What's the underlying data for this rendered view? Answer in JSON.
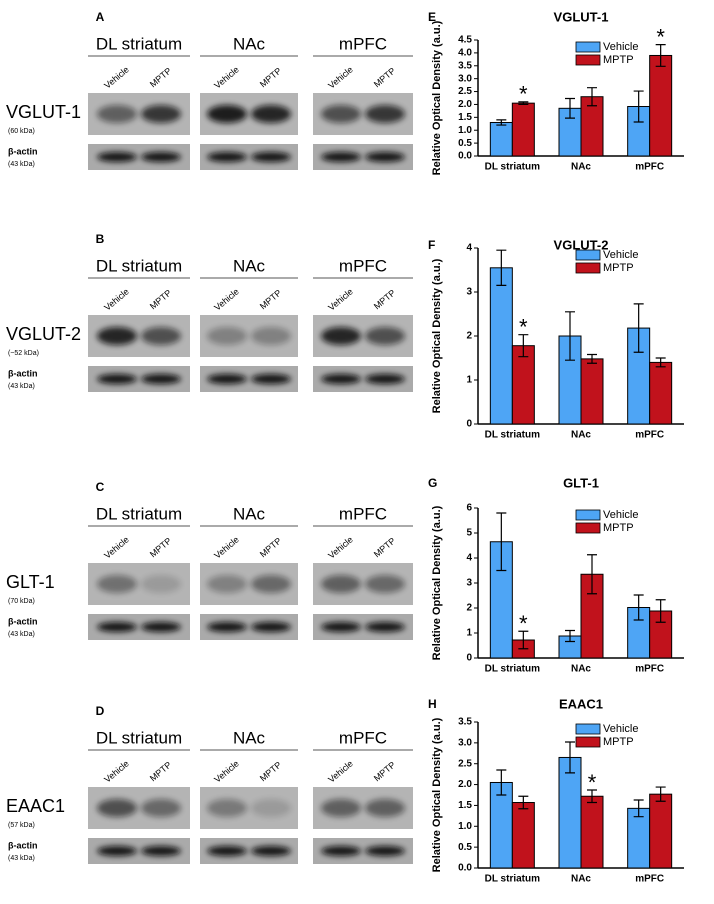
{
  "blot_panels": [
    {
      "label": "A",
      "groups": [
        "DL striatum",
        "NAc",
        "mPFC"
      ],
      "lanes": [
        "Vehicle",
        "MPTP"
      ],
      "protein": "VGLUT-1",
      "protein_kda": "(60 kDa)",
      "loading": "β-actin",
      "loading_kda": "(43 kDa)"
    },
    {
      "label": "B",
      "groups": [
        "DL striatum",
        "NAc",
        "mPFC"
      ],
      "lanes": [
        "Vehicle",
        "MPTP"
      ],
      "protein": "VGLUT-2",
      "protein_kda": "(~52 kDa)",
      "loading": "β-actin",
      "loading_kda": "(43 kDa)"
    },
    {
      "label": "C",
      "groups": [
        "DL striatum",
        "NAc",
        "mPFC"
      ],
      "lanes": [
        "Vehicle",
        "MPTP"
      ],
      "protein": "GLT-1",
      "protein_kda": "(70 kDa)",
      "loading": "β-actin",
      "loading_kda": "(43 kDa)"
    },
    {
      "label": "D",
      "groups": [
        "DL striatum",
        "NAc",
        "mPFC"
      ],
      "lanes": [
        "Vehicle",
        "MPTP"
      ],
      "protein": "EAAC1",
      "protein_kda": "(57 kDa)",
      "loading": "β-actin",
      "loading_kda": "(43 kDa)"
    }
  ],
  "chart_data": [
    {
      "type": "bar",
      "panel_label": "E",
      "title": "VGLUT-1",
      "ylabel": "Relative Optical Density (a.u.)",
      "categories": [
        "DL striatum",
        "NAc",
        "mPFC"
      ],
      "series": [
        {
          "name": "Vehicle",
          "color": "#4ea5f5",
          "values": [
            1.3,
            1.85,
            1.92
          ],
          "errors": [
            0.1,
            0.38,
            0.6
          ]
        },
        {
          "name": "MPTP",
          "color": "#c1121c",
          "values": [
            2.05,
            2.3,
            3.9
          ],
          "errors": [
            0.05,
            0.35,
            0.42
          ],
          "significance": [
            "*",
            null,
            "*"
          ]
        }
      ],
      "ylim": [
        0,
        4.5
      ],
      "yticks": [
        {
          "value": 0,
          "label": "0.0"
        },
        0.5,
        {
          "value": 1,
          "label": "1.0"
        },
        1.5,
        {
          "value": 2,
          "label": "2.0"
        },
        2.5,
        {
          "value": 3,
          "label": "3.0"
        },
        3.5,
        {
          "value": 4,
          "label": "4.0"
        },
        4.5
      ],
      "legend": "upper right"
    },
    {
      "type": "bar",
      "panel_label": "F",
      "title": "VGLUT-2",
      "ylabel": "Relative Optical Density (a.u.)",
      "categories": [
        "DL striatum",
        "NAc",
        "mPFC"
      ],
      "series": [
        {
          "name": "Vehicle",
          "color": "#4ea5f5",
          "values": [
            3.55,
            2.0,
            2.18
          ],
          "errors": [
            0.4,
            0.55,
            0.55
          ]
        },
        {
          "name": "MPTP",
          "color": "#c1121c",
          "values": [
            1.78,
            1.48,
            1.4
          ],
          "errors": [
            0.25,
            0.1,
            0.1
          ],
          "significance": [
            "*",
            null,
            null
          ]
        }
      ],
      "ylim": [
        0,
        4
      ],
      "yticks": [
        0,
        1,
        2,
        3,
        4
      ],
      "legend": "upper right"
    },
    {
      "type": "bar",
      "panel_label": "G",
      "title": "GLT-1",
      "ylabel": "Relative Optical Density (a.u.)",
      "categories": [
        "DL striatum",
        "NAc",
        "mPFC"
      ],
      "series": [
        {
          "name": "Vehicle",
          "color": "#4ea5f5",
          "values": [
            4.65,
            0.88,
            2.02
          ],
          "errors": [
            1.15,
            0.22,
            0.5
          ]
        },
        {
          "name": "MPTP",
          "color": "#c1121c",
          "values": [
            0.72,
            3.35,
            1.88
          ],
          "errors": [
            0.35,
            0.78,
            0.45
          ],
          "significance": [
            "*",
            null,
            null
          ]
        }
      ],
      "ylim": [
        0,
        6
      ],
      "yticks": [
        0,
        1,
        2,
        3,
        4,
        5,
        6
      ],
      "legend": "upper right"
    },
    {
      "type": "bar",
      "panel_label": "H",
      "title": "EAAC1",
      "ylabel": "Relative Optical Density (a.u.)",
      "categories": [
        "DL striatum",
        "NAc",
        "mPFC"
      ],
      "series": [
        {
          "name": "Vehicle",
          "color": "#4ea5f5",
          "values": [
            2.05,
            2.65,
            1.43
          ],
          "errors": [
            0.3,
            0.37,
            0.2
          ]
        },
        {
          "name": "MPTP",
          "color": "#c1121c",
          "values": [
            1.57,
            1.72,
            1.77
          ],
          "errors": [
            0.15,
            0.15,
            0.17
          ],
          "significance": [
            null,
            "*",
            null
          ]
        }
      ],
      "ylim": [
        0,
        3.5
      ],
      "yticks": [
        {
          "value": 0,
          "label": "0.0"
        },
        0.5,
        {
          "value": 1,
          "label": "1.0"
        },
        1.5,
        {
          "value": 2,
          "label": "2.0"
        },
        2.5,
        {
          "value": 3,
          "label": "3.0"
        },
        3.5
      ],
      "legend": "upper right"
    }
  ]
}
